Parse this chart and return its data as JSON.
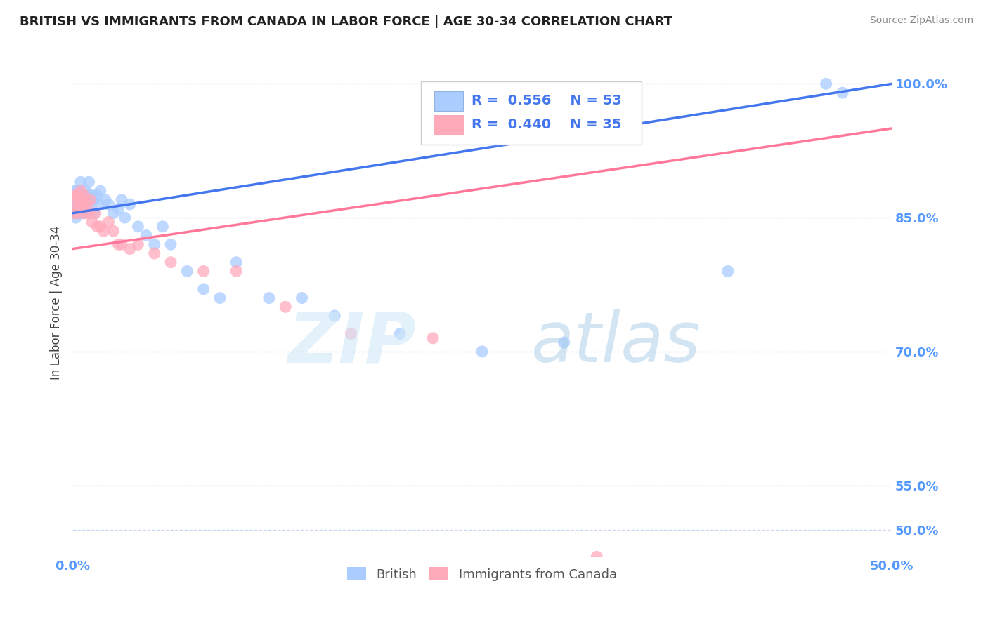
{
  "title": "BRITISH VS IMMIGRANTS FROM CANADA IN LABOR FORCE | AGE 30-34 CORRELATION CHART",
  "source": "Source: ZipAtlas.com",
  "ylabel": "In Labor Force | Age 30-34",
  "xlim": [
    0.0,
    0.5
  ],
  "ylim": [
    0.47,
    1.04
  ],
  "yticks": [
    0.5,
    0.55,
    0.7,
    0.85,
    1.0
  ],
  "ytick_labels": [
    "50.0%",
    "55.0%",
    "70.0%",
    "85.0%",
    "100.0%"
  ],
  "xtick_labels": [
    "0.0%",
    "50.0%"
  ],
  "xticks": [
    0.0,
    0.5
  ],
  "axis_color": "#5599ff",
  "watermark_zip": "ZIP",
  "watermark_atlas": "atlas",
  "legend_blue_label": "British",
  "legend_pink_label": "Immigrants from Canada",
  "R_blue": 0.556,
  "N_blue": 53,
  "R_pink": 0.44,
  "N_pink": 35,
  "blue_color": "#aaccff",
  "pink_color": "#ffaabb",
  "blue_line_color": "#4477ee",
  "pink_line_color": "#ff7799",
  "blue_scatter_x": [
    0.001,
    0.001,
    0.001,
    0.002,
    0.002,
    0.003,
    0.003,
    0.004,
    0.004,
    0.005,
    0.005,
    0.006,
    0.006,
    0.007,
    0.007,
    0.008,
    0.008,
    0.009,
    0.009,
    0.01,
    0.01,
    0.011,
    0.012,
    0.013,
    0.013,
    0.015,
    0.016,
    0.017,
    0.02,
    0.022,
    0.025,
    0.028,
    0.03,
    0.032,
    0.035,
    0.04,
    0.045,
    0.05,
    0.055,
    0.06,
    0.07,
    0.08,
    0.09,
    0.1,
    0.12,
    0.14,
    0.16,
    0.2,
    0.25,
    0.3,
    0.4,
    0.46,
    0.47
  ],
  "blue_scatter_y": [
    0.86,
    0.87,
    0.88,
    0.85,
    0.875,
    0.865,
    0.88,
    0.87,
    0.855,
    0.875,
    0.89,
    0.86,
    0.875,
    0.87,
    0.855,
    0.88,
    0.865,
    0.875,
    0.86,
    0.875,
    0.89,
    0.87,
    0.875,
    0.855,
    0.87,
    0.875,
    0.865,
    0.88,
    0.87,
    0.865,
    0.855,
    0.86,
    0.87,
    0.85,
    0.865,
    0.84,
    0.83,
    0.82,
    0.84,
    0.82,
    0.79,
    0.77,
    0.76,
    0.8,
    0.76,
    0.76,
    0.74,
    0.72,
    0.7,
    0.71,
    0.79,
    1.0,
    0.99
  ],
  "pink_scatter_x": [
    0.001,
    0.001,
    0.002,
    0.002,
    0.003,
    0.003,
    0.004,
    0.005,
    0.005,
    0.006,
    0.007,
    0.007,
    0.008,
    0.009,
    0.01,
    0.011,
    0.012,
    0.014,
    0.015,
    0.017,
    0.019,
    0.022,
    0.025,
    0.028,
    0.03,
    0.035,
    0.04,
    0.05,
    0.06,
    0.08,
    0.1,
    0.13,
    0.17,
    0.22,
    0.32
  ],
  "pink_scatter_y": [
    0.87,
    0.855,
    0.875,
    0.86,
    0.855,
    0.875,
    0.87,
    0.88,
    0.865,
    0.86,
    0.875,
    0.855,
    0.87,
    0.865,
    0.855,
    0.87,
    0.845,
    0.855,
    0.84,
    0.84,
    0.835,
    0.845,
    0.835,
    0.82,
    0.82,
    0.815,
    0.82,
    0.81,
    0.8,
    0.79,
    0.79,
    0.75,
    0.72,
    0.715,
    0.47
  ],
  "blue_trend_x0": 0.0,
  "blue_trend_y0": 0.855,
  "blue_trend_x1": 0.5,
  "blue_trend_y1": 1.0,
  "pink_trend_x0": 0.0,
  "pink_trend_y0": 0.815,
  "pink_trend_x1": 0.5,
  "pink_trend_y1": 0.95
}
